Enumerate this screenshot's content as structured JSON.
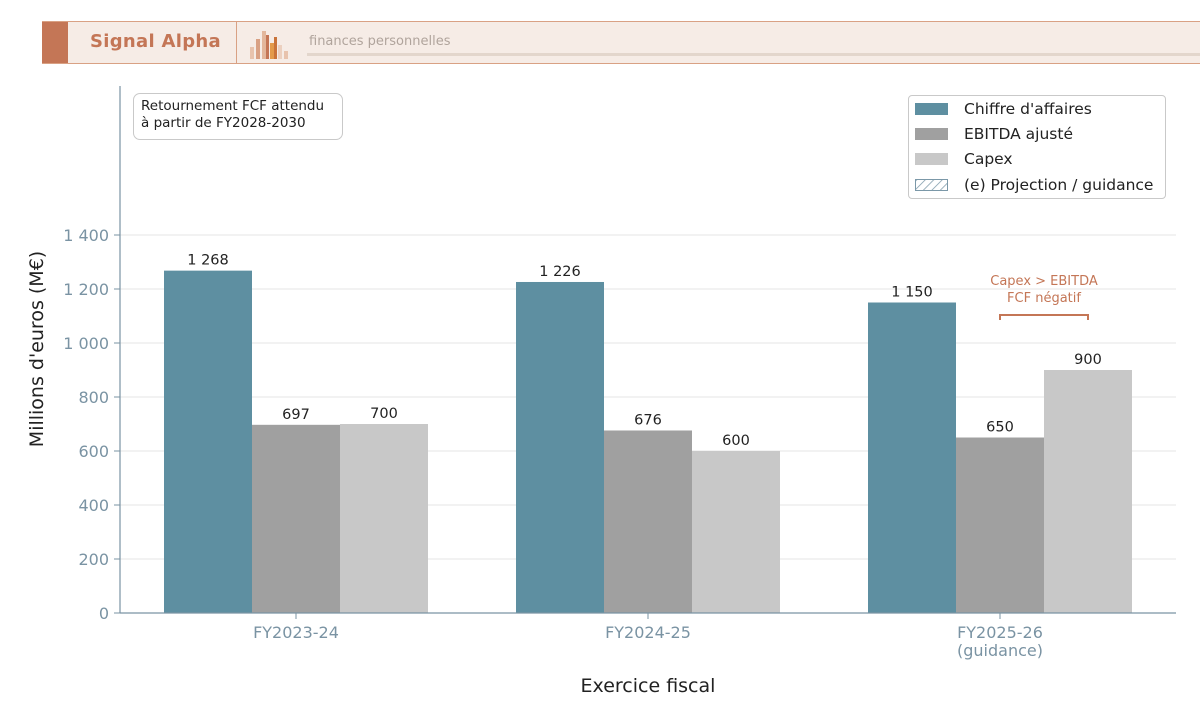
{
  "header": {
    "brand": "Signal Alpha",
    "tagline": "finances personnelles"
  },
  "note": {
    "line1": "Retournement FCF attendu",
    "line2": "à partir de FY2028-2030"
  },
  "annotation": {
    "line1": "Capex > EBITDA",
    "line2": "FCF négatif"
  },
  "legend": {
    "items": [
      {
        "label": "Chiffre d'affaires",
        "color": "#5e8fa1",
        "style": "solid"
      },
      {
        "label": "EBITDA ajusté",
        "color": "#a0a0a0",
        "style": "solid"
      },
      {
        "label": "Capex",
        "color": "#c8c8c8",
        "style": "solid"
      },
      {
        "label": "(e) Projection / guidance",
        "color": "#7b98a8",
        "style": "hatched"
      }
    ]
  },
  "colors": {
    "accent": "#c47656",
    "axis": "#7a93a3",
    "grid": "#e6e6e6"
  },
  "chart_data": {
    "type": "bar",
    "categories": [
      "FY2023-24",
      "FY2024-25",
      "FY2025-26"
    ],
    "category_sublabels": [
      "",
      "",
      "(guidance)"
    ],
    "series": [
      {
        "name": "Chiffre d'affaires",
        "values": [
          1268,
          1226,
          1150
        ],
        "labels": [
          "1 268",
          "1 226",
          "1 150"
        ],
        "color": "#5e8fa1"
      },
      {
        "name": "EBITDA ajusté",
        "values": [
          697,
          676,
          650
        ],
        "labels": [
          "697",
          "676",
          "650"
        ],
        "color": "#a0a0a0"
      },
      {
        "name": "Capex",
        "values": [
          700,
          600,
          900
        ],
        "labels": [
          "700",
          "600",
          "900"
        ],
        "color": "#c8c8c8"
      }
    ],
    "xlabel": "Exercice fiscal",
    "ylabel": "Millions d'euros (M€)",
    "ylim": [
      0,
      1400
    ],
    "yticks": [
      0,
      200,
      400,
      600,
      800,
      1000,
      1200,
      1400
    ],
    "ytick_labels": [
      "0",
      "200",
      "400",
      "600",
      "800",
      "1 000",
      "1 200",
      "1 400"
    ],
    "grid": true,
    "legend_position": "top-right"
  }
}
